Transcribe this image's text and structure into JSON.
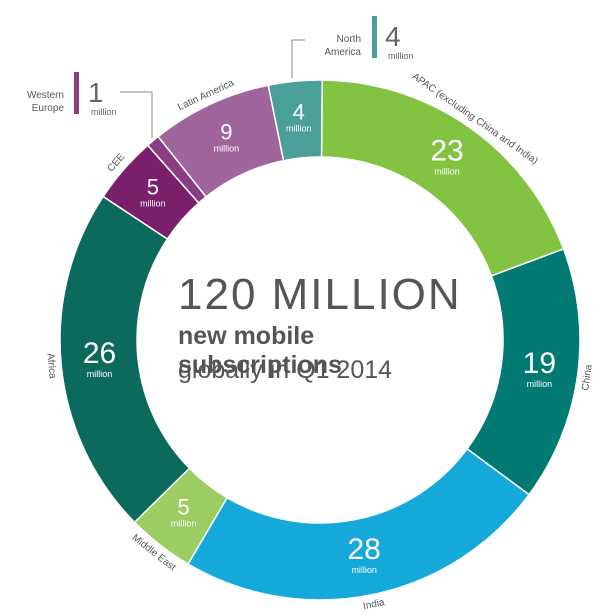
{
  "chart_data": {
    "type": "donut",
    "total_label": "120 MILLION",
    "subtitle_line1": "new mobile subscriptions",
    "subtitle_line2": "globally in Q1 2014",
    "unit": "million",
    "slices": [
      {
        "name": "North America",
        "value": 4,
        "color": "#4a9f98"
      },
      {
        "name": "APAC (excluding China and India)",
        "value": 23,
        "color": "#82c341"
      },
      {
        "name": "China",
        "value": 19,
        "color": "#007a72"
      },
      {
        "name": "India",
        "value": 28,
        "color": "#14a9d8"
      },
      {
        "name": "Middle East",
        "value": 5,
        "color": "#9ccd62"
      },
      {
        "name": "Africa",
        "value": 26,
        "color": "#0b6a5c"
      },
      {
        "name": "CEE",
        "value": 5,
        "color": "#7a1f6b"
      },
      {
        "name": "Western Europe",
        "value": 1,
        "color": "#8b3d82"
      },
      {
        "name": "Latin America",
        "value": 9,
        "color": "#a0669c"
      }
    ]
  }
}
